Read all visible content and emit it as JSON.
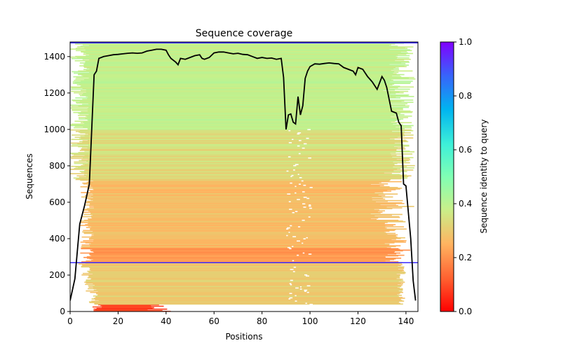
{
  "chart_data": {
    "type": "heatmap",
    "title": "Sequence coverage",
    "xlabel": "Positions",
    "ylabel": "Sequences",
    "xlim": [
      0,
      145
    ],
    "ylim": [
      0,
      1480
    ],
    "x_ticks": [
      0,
      20,
      40,
      60,
      80,
      100,
      120,
      140
    ],
    "y_ticks": [
      0,
      200,
      400,
      600,
      800,
      1000,
      1200,
      1400
    ],
    "colorbar": {
      "label": "Sequence identity to query",
      "range": [
        0,
        1
      ],
      "ticks": [
        0.0,
        0.2,
        0.4,
        0.6,
        0.8,
        1.0
      ],
      "tick_labels": [
        "0.0",
        "0.2",
        "0.4",
        "0.6",
        "0.8",
        "1.0"
      ],
      "colormap": "rainbow_r"
    },
    "horizontal_lines": [
      {
        "y": 268,
        "color": "#3a2bff"
      },
      {
        "y": 1475,
        "color": "#3a2bff"
      }
    ],
    "coverage_series": {
      "color": "#000000",
      "x": [
        0,
        2,
        4,
        6,
        8,
        9,
        10,
        11,
        12,
        14,
        16,
        18,
        20,
        22,
        24,
        26,
        28,
        30,
        32,
        34,
        36,
        38,
        40,
        41,
        42,
        44,
        45,
        46,
        48,
        50,
        52,
        54,
        55,
        56,
        58,
        60,
        62,
        64,
        66,
        68,
        70,
        72,
        74,
        76,
        78,
        80,
        82,
        84,
        86,
        88,
        89,
        90,
        91,
        92,
        93,
        94,
        95,
        96,
        97,
        98,
        99,
        100,
        102,
        104,
        106,
        108,
        110,
        112,
        114,
        116,
        118,
        119,
        120,
        122,
        124,
        126,
        128,
        130,
        131,
        132,
        134,
        136,
        137,
        138,
        139,
        140,
        142,
        143,
        144
      ],
      "y": [
        60,
        180,
        480,
        580,
        700,
        1000,
        1300,
        1320,
        1390,
        1400,
        1405,
        1410,
        1412,
        1415,
        1418,
        1420,
        1418,
        1420,
        1430,
        1435,
        1440,
        1440,
        1435,
        1410,
        1390,
        1370,
        1355,
        1390,
        1385,
        1395,
        1405,
        1410,
        1390,
        1385,
        1395,
        1420,
        1425,
        1425,
        1420,
        1415,
        1418,
        1412,
        1410,
        1400,
        1390,
        1395,
        1390,
        1392,
        1385,
        1390,
        1285,
        1000,
        1080,
        1085,
        1040,
        1030,
        1180,
        1080,
        1130,
        1280,
        1320,
        1345,
        1360,
        1358,
        1362,
        1365,
        1362,
        1360,
        1340,
        1330,
        1320,
        1300,
        1340,
        1330,
        1290,
        1260,
        1220,
        1290,
        1270,
        1230,
        1100,
        1090,
        1040,
        1020,
        700,
        690,
        400,
        170,
        60
      ]
    }
  }
}
